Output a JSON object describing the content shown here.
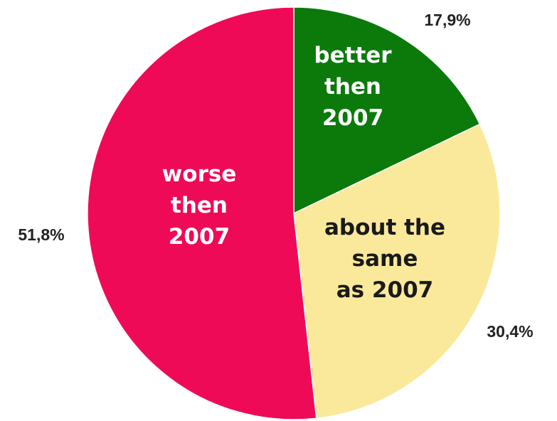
{
  "chart_data": {
    "type": "pie",
    "slices": [
      {
        "label": [
          "better",
          "then",
          "2007"
        ],
        "value": 17.9,
        "value_text": "17,9%",
        "color": "#0b7a0b",
        "text_color": "#ffffff"
      },
      {
        "label": [
          "about the",
          "same",
          "as 2007"
        ],
        "value": 30.4,
        "value_text": "30,4%",
        "color": "#fbe99b",
        "text_color": "#1a1a1a"
      },
      {
        "label": [
          "worse",
          "then",
          "2007"
        ],
        "value": 51.8,
        "value_text": "51,8%",
        "color": "#ef0a57",
        "text_color": "#ffffff"
      }
    ],
    "start_angle": "12 o'clock",
    "direction": "clockwise"
  }
}
